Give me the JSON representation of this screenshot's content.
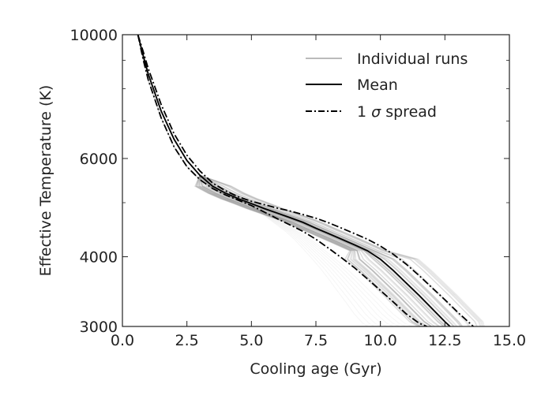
{
  "chart_data": {
    "type": "line",
    "title": "",
    "xlabel": "Cooling age (Gyr)",
    "ylabel": "Effective Temperature (K)",
    "xlim": [
      0.0,
      15.0
    ],
    "ylim": [
      3000,
      10000
    ],
    "yscale": "log",
    "grid": false,
    "legend_position": "top-right",
    "x_ticks": [
      "0.0",
      "2.5",
      "5.0",
      "7.5",
      "10.0",
      "12.5",
      "15.0"
    ],
    "y_ticks": [
      "3000",
      "4000",
      "6000",
      "10000"
    ],
    "legend": {
      "individual": "Individual runs",
      "mean": "Mean",
      "sigma_prefix": "1 ",
      "sigma_symbol": "σ",
      "sigma_suffix": " spread"
    },
    "colors": {
      "individual": "#808080",
      "mean": "#000000",
      "spread": "#000000",
      "legend_individual": "#bbbbbb",
      "axis": "#222222"
    },
    "series": [
      {
        "name": "Mean",
        "style": "solid",
        "x": [
          0.6,
          0.8,
          1.0,
          1.5,
          2.0,
          2.5,
          3.0,
          3.5,
          4.0,
          4.5,
          5.0,
          5.5,
          6.0,
          6.5,
          7.0,
          7.5,
          8.0,
          8.5,
          9.0,
          9.5,
          10.0,
          10.5,
          11.0,
          11.5,
          12.0,
          12.5,
          12.7
        ],
        "y": [
          10000,
          9200,
          8500,
          7300,
          6500,
          5950,
          5600,
          5350,
          5200,
          5080,
          4980,
          4880,
          4790,
          4700,
          4610,
          4500,
          4400,
          4300,
          4200,
          4100,
          3960,
          3780,
          3590,
          3410,
          3230,
          3060,
          3000
        ]
      },
      {
        "name": "1 σ spread (upper)",
        "style": "dashdot",
        "x": [
          0.6,
          0.8,
          1.0,
          1.5,
          2.0,
          2.5,
          3.0,
          3.5,
          4.0,
          4.5,
          5.0,
          5.5,
          6.0,
          6.5,
          7.0,
          7.5,
          8.0,
          8.5,
          9.0,
          9.5,
          10.0,
          10.5,
          11.0,
          11.5,
          12.0,
          12.5,
          13.0,
          13.5,
          13.6
        ],
        "y": [
          10000,
          9350,
          8700,
          7500,
          6650,
          6080,
          5700,
          5420,
          5250,
          5120,
          5030,
          4960,
          4890,
          4830,
          4760,
          4690,
          4600,
          4500,
          4400,
          4300,
          4180,
          4040,
          3880,
          3700,
          3520,
          3350,
          3180,
          3030,
          3000
        ]
      },
      {
        "name": "1 σ spread (lower)",
        "style": "dashdot",
        "x": [
          0.6,
          0.8,
          1.0,
          1.5,
          2.0,
          2.5,
          3.0,
          3.5,
          4.0,
          4.5,
          5.0,
          5.5,
          6.0,
          6.5,
          7.0,
          7.5,
          8.0,
          8.5,
          9.0,
          9.5,
          10.0,
          10.5,
          11.0,
          11.5,
          11.8
        ],
        "y": [
          10000,
          9050,
          8300,
          7100,
          6300,
          5800,
          5500,
          5300,
          5160,
          5050,
          4940,
          4810,
          4680,
          4560,
          4440,
          4300,
          4140,
          3980,
          3820,
          3650,
          3480,
          3320,
          3160,
          3040,
          3000
        ]
      }
    ]
  }
}
